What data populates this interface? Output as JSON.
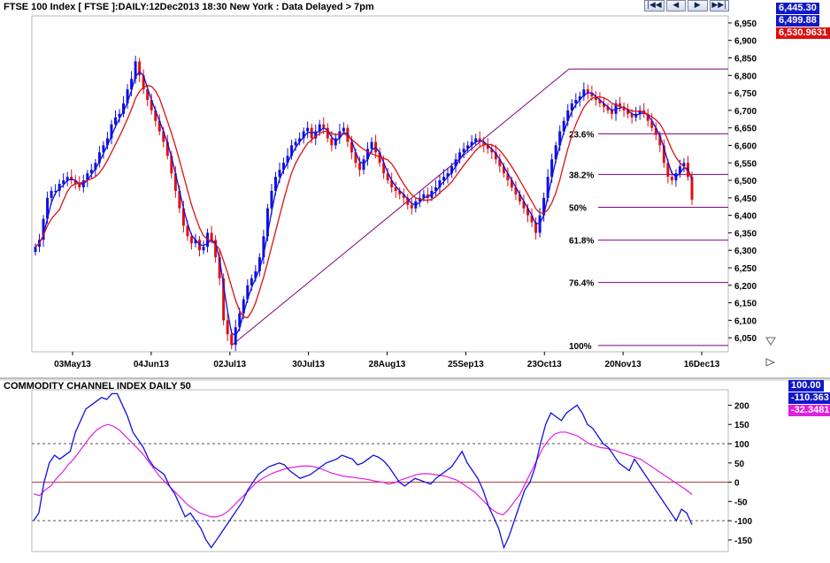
{
  "header": {
    "title": "FTSE 100 Index [ FTSE ]:DAILY:12Dec2013 18:30 New York : Data Delayed > 7pm",
    "nav_buttons": [
      "|◀◀",
      "◀",
      "▶",
      "▶▶|"
    ]
  },
  "price_panel": {
    "badges": [
      {
        "value": "6,445.30",
        "color": "#1018c8"
      },
      {
        "value": "6,499.88",
        "color": "#1018c8"
      },
      {
        "value": "6,530.9631",
        "color": "#e01010"
      }
    ],
    "y_ticks": [
      "6,950",
      "6,900",
      "6,850",
      "6,800",
      "6,750",
      "6,700",
      "6,650",
      "6,600",
      "6,550",
      "6,500",
      "6,450",
      "6,400",
      "6,350",
      "6,300",
      "6,250",
      "6,200",
      "6,150",
      "6,100",
      "6,050"
    ],
    "x_ticks": [
      "03May13",
      "04Jun13",
      "02Jul13",
      "30Jul13",
      "28Aug13",
      "25Sep13",
      "23Oct13",
      "20Nov13",
      "16Dec13"
    ],
    "fib_levels": [
      {
        "label": "100%",
        "value": 6028
      },
      {
        "label": "76.4%",
        "value": 6208
      },
      {
        "label": "61.8%",
        "value": 6329
      },
      {
        "label": "50%",
        "value": 6423
      },
      {
        "label": "38.2%",
        "value": 6517
      },
      {
        "label": "23.6%",
        "value": 6633
      },
      {
        "label": "",
        "value": 6818
      }
    ]
  },
  "cci_panel": {
    "title": "COMMODITY CHANNEL INDEX DAILY 50",
    "badges": [
      {
        "value": "100.00",
        "color": "#1018c8"
      },
      {
        "value": "-110.363",
        "color": "#1018c8"
      },
      {
        "value": "-32.3481",
        "color": "#e020e0"
      }
    ],
    "y_ticks": [
      "200",
      "150",
      "100",
      "50",
      "0",
      "-50",
      "-100",
      "-150"
    ]
  },
  "colors": {
    "up_candle": "#1010e0",
    "down_candle": "#e01010",
    "fast_ma": "#1010e0",
    "slow_ma": "#e01010",
    "fib_line": "#800080",
    "cci_line": "#1010e0",
    "cci_signal": "#e020e0"
  },
  "chart_data": [
    {
      "type": "candlestick",
      "title": "FTSE 100 Index [ FTSE ]:DAILY:12Dec2013 18:30 New York : Data Delayed > 7pm",
      "ylim": [
        6010,
        6970
      ],
      "closes": [
        6310,
        6330,
        6390,
        6450,
        6470,
        6470,
        6490,
        6500,
        6510,
        6500,
        6490,
        6480,
        6500,
        6520,
        6530,
        6550,
        6580,
        6600,
        6620,
        6660,
        6680,
        6690,
        6720,
        6760,
        6790,
        6840,
        6800,
        6760,
        6730,
        6700,
        6670,
        6640,
        6610,
        6570,
        6520,
        6470,
        6420,
        6370,
        6340,
        6320,
        6330,
        6300,
        6310,
        6350,
        6330,
        6280,
        6220,
        6100,
        6060,
        6030,
        6080,
        6120,
        6160,
        6200,
        6220,
        6240,
        6280,
        6340,
        6420,
        6470,
        6510,
        6530,
        6550,
        6570,
        6600,
        6610,
        6620,
        6640,
        6650,
        6620,
        6640,
        6660,
        6650,
        6620,
        6600,
        6620,
        6640,
        6650,
        6610,
        6580,
        6550,
        6530,
        6560,
        6590,
        6610,
        6580,
        6550,
        6520,
        6500,
        6480,
        6470,
        6460,
        6450,
        6430,
        6420,
        6440,
        6450,
        6460,
        6450,
        6470,
        6480,
        6500,
        6510,
        6520,
        6540,
        6560,
        6580,
        6590,
        6600,
        6610,
        6620,
        6610,
        6600,
        6590,
        6580,
        6560,
        6540,
        6520,
        6500,
        6480,
        6460,
        6440,
        6420,
        6400,
        6380,
        6350,
        6400,
        6450,
        6510,
        6560,
        6600,
        6640,
        6670,
        6700,
        6720,
        6730,
        6740,
        6760,
        6750,
        6740,
        6730,
        6720,
        6710,
        6700,
        6690,
        6720,
        6710,
        6700,
        6690,
        6680,
        6690,
        6700,
        6690,
        6670,
        6650,
        6630,
        6600,
        6550,
        6510,
        6500,
        6520,
        6540,
        6550,
        6510,
        6445
      ],
      "fib_levels": {
        "100%": 6028,
        "76.4%": 6208,
        "61.8%": 6329,
        "50%": 6423,
        "38.2%": 6517,
        "23.6%": 6633
      },
      "last_values": [
        6445.3,
        6499.88,
        6530.9631
      ]
    },
    {
      "type": "line",
      "title": "COMMODITY CHANNEL INDEX DAILY 50",
      "ylim": [
        -180,
        240
      ],
      "series": [
        {
          "values": [
            -100,
            -80,
            0,
            50,
            70,
            60,
            70,
            80,
            130,
            160,
            190,
            200,
            210,
            220,
            215,
            230,
            230,
            200,
            170,
            130,
            110,
            90,
            60,
            40,
            30,
            20,
            -10,
            -30,
            -60,
            -90,
            -80,
            -100,
            -120,
            -150,
            -170,
            -150,
            -130,
            -110,
            -90,
            -70,
            -50,
            -20,
            0,
            20,
            30,
            40,
            45,
            50,
            45,
            30,
            20,
            10,
            15,
            20,
            30,
            40,
            50,
            55,
            60,
            70,
            65,
            60,
            45,
            50,
            60,
            70,
            65,
            55,
            40,
            20,
            0,
            -10,
            0,
            10,
            5,
            0,
            -5,
            10,
            20,
            30,
            40,
            60,
            80,
            50,
            30,
            10,
            -20,
            -60,
            -90,
            -120,
            -170,
            -140,
            -100,
            -60,
            -20,
            0,
            40,
            100,
            150,
            180,
            170,
            160,
            180,
            190,
            200,
            180,
            150,
            140,
            120,
            100,
            90,
            70,
            50,
            40,
            30,
            60,
            40,
            20,
            0,
            -20,
            -40,
            -60,
            -80,
            -100,
            -70,
            -80,
            -110
          ]
        },
        {
          "values": [
            -30,
            -35,
            -20,
            -10,
            10,
            25,
            45,
            60,
            80,
            100,
            120,
            135,
            145,
            150,
            145,
            135,
            120,
            105,
            90,
            75,
            55,
            35,
            15,
            0,
            -15,
            -30,
            -45,
            -60,
            -70,
            -80,
            -85,
            -90,
            -90,
            -85,
            -75,
            -60,
            -45,
            -30,
            -15,
            0,
            10,
            18,
            25,
            30,
            35,
            38,
            40,
            42,
            42,
            40,
            36,
            30,
            24,
            20,
            16,
            14,
            12,
            10,
            8,
            5,
            2,
            0,
            -5,
            -2,
            5,
            10,
            15,
            20,
            22,
            22,
            20,
            18,
            15,
            10,
            5,
            -5,
            -15,
            -25,
            -40,
            -55,
            -70,
            -80,
            -85,
            -70,
            -50,
            -30,
            0,
            30,
            60,
            90,
            110,
            125,
            130,
            130,
            125,
            120,
            110,
            100,
            95,
            90,
            88,
            85,
            80,
            75,
            70,
            65,
            60,
            50,
            40,
            30,
            20,
            10,
            0,
            -10,
            -20,
            -32
          ]
        }
      ]
    }
  ]
}
